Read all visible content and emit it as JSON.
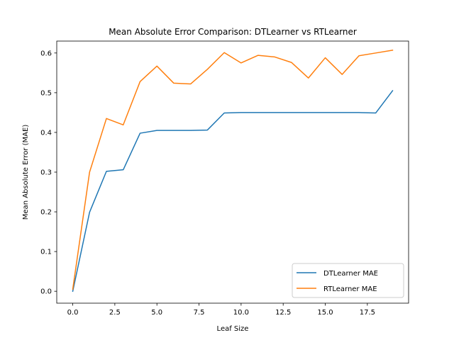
{
  "chart_data": {
    "type": "line",
    "title": "Mean Absolute Error Comparison: DTLearner vs RTLearner",
    "xlabel": "Leaf Size",
    "ylabel": "Mean Absolute Error (MAE)",
    "xlim": [
      -0.95,
      19.95
    ],
    "ylim": [
      -0.03,
      0.63
    ],
    "xticks": [
      0,
      2.5,
      5,
      7.5,
      10,
      12.5,
      15,
      17.5
    ],
    "xtick_labels": [
      "0.0",
      "2.5",
      "5.0",
      "7.5",
      "10.0",
      "12.5",
      "15.0",
      "17.5"
    ],
    "yticks": [
      0,
      0.1,
      0.2,
      0.3,
      0.4,
      0.5,
      0.6
    ],
    "ytick_labels": [
      "0.0",
      "0.1",
      "0.2",
      "0.3",
      "0.4",
      "0.5",
      "0.6"
    ],
    "grid": false,
    "legend_position": "lower-right",
    "x": [
      0,
      1,
      2,
      3,
      4,
      5,
      6,
      7,
      8,
      9,
      10,
      11,
      12,
      13,
      14,
      15,
      16,
      17,
      18,
      19
    ],
    "series": [
      {
        "name": "DTLearner MAE",
        "color": "#1f77b4",
        "values": [
          0.0,
          0.199,
          0.302,
          0.306,
          0.398,
          0.405,
          0.405,
          0.405,
          0.406,
          0.449,
          0.45,
          0.45,
          0.45,
          0.45,
          0.45,
          0.45,
          0.45,
          0.45,
          0.449,
          0.505
        ]
      },
      {
        "name": "RTLearner MAE",
        "color": "#ff7f0e",
        "values": [
          0.005,
          0.3,
          0.435,
          0.419,
          0.528,
          0.567,
          0.524,
          0.522,
          0.559,
          0.601,
          0.575,
          0.594,
          0.59,
          0.576,
          0.537,
          0.588,
          0.546,
          0.593,
          0.6,
          0.607
        ]
      }
    ]
  }
}
